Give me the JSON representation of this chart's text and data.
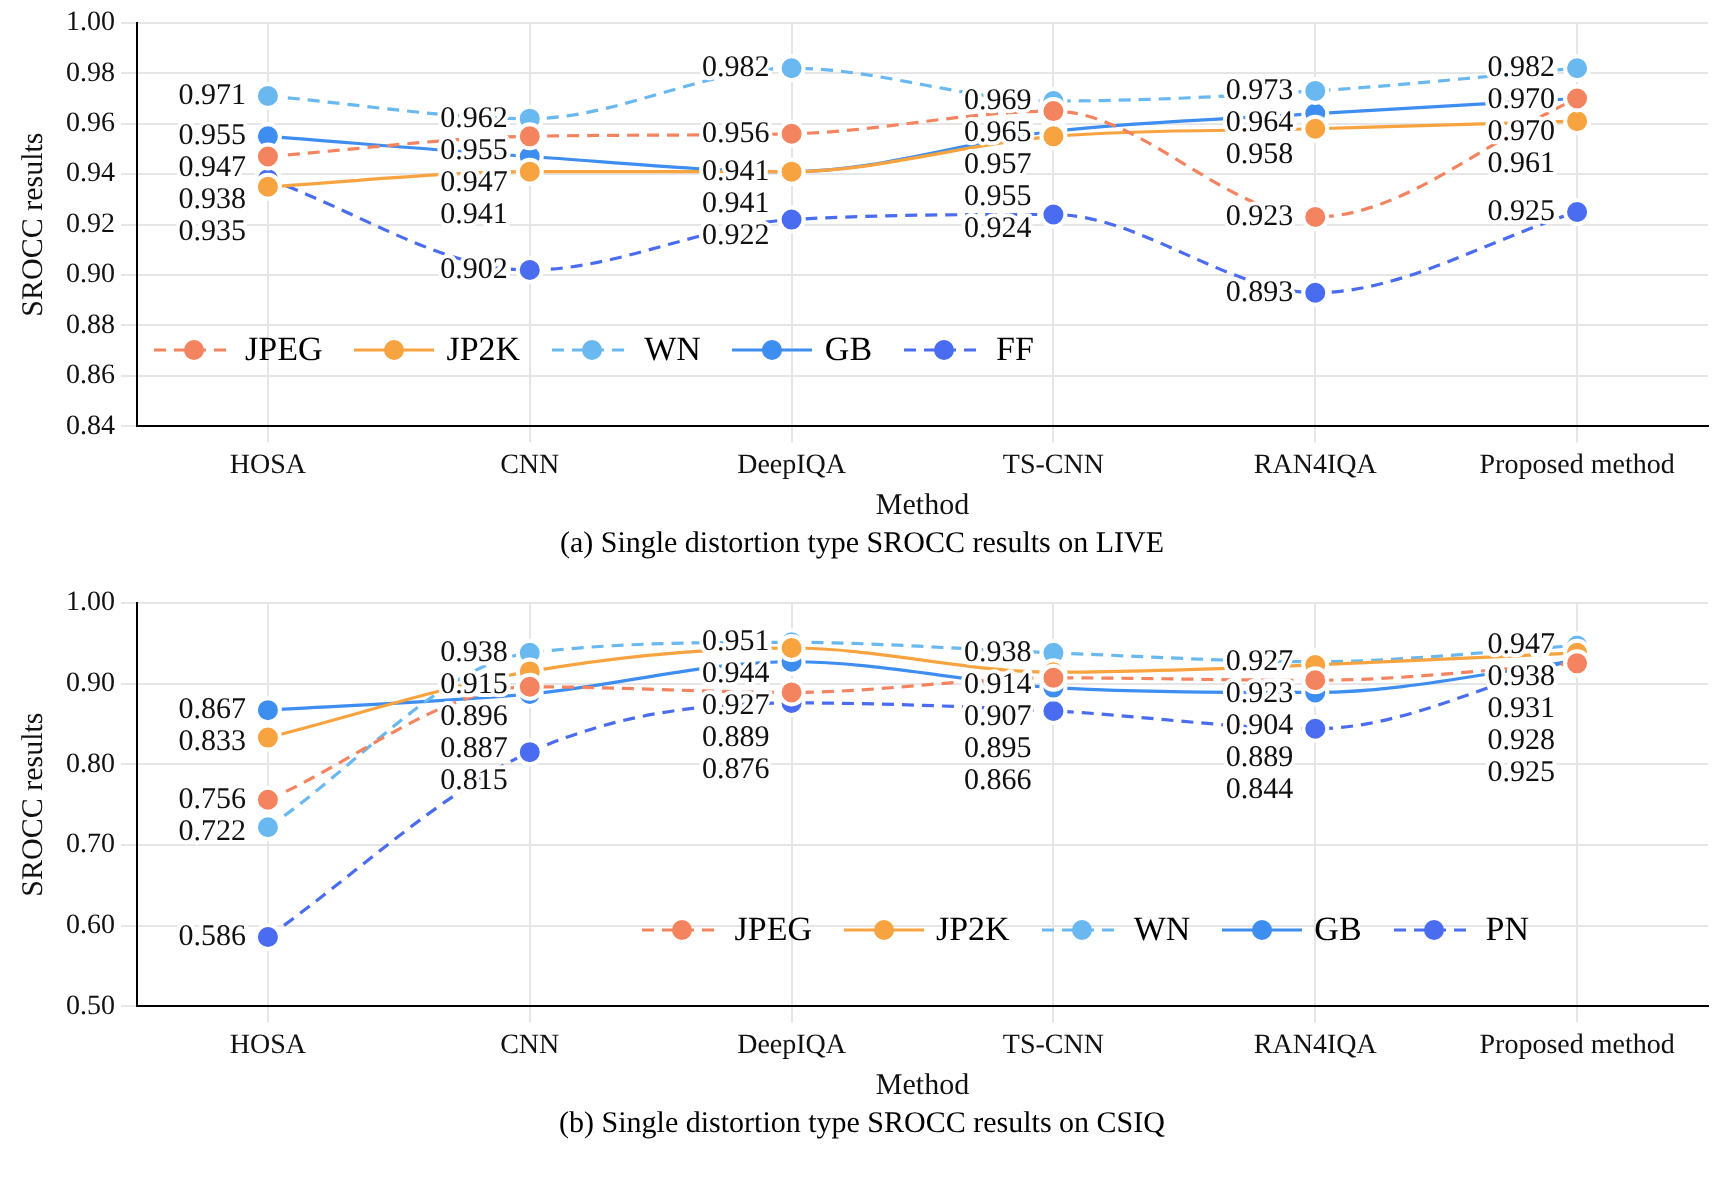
{
  "chart_data": [
    {
      "type": "line",
      "title": "(a) Single distortion type SROCC results on LIVE",
      "xlabel": "Method",
      "ylabel": "SROCC results",
      "categories": [
        "HOSA",
        "CNN",
        "DeepIQA",
        "TS-CNN",
        "RAN4IQA",
        "Proposed method"
      ],
      "series": [
        {
          "name": "JPEG",
          "color": "#f4845f",
          "line_style": "dashed",
          "values": [
            0.947,
            0.955,
            0.956,
            0.965,
            0.923,
            0.97
          ],
          "value_labels": [
            "0.947",
            "0.955",
            "0.956",
            "0.965",
            "0.923",
            "0.970"
          ]
        },
        {
          "name": "JP2K",
          "color": "#f7a440",
          "line_style": "solid",
          "values": [
            0.935,
            0.941,
            0.941,
            0.955,
            0.958,
            0.961
          ],
          "value_labels": [
            "0.935",
            "0.941",
            "0.941",
            "0.955",
            "0.958",
            "0.961"
          ]
        },
        {
          "name": "WN",
          "color": "#6ab8f0",
          "line_style": "dashed",
          "values": [
            0.971,
            0.962,
            0.982,
            0.969,
            0.973,
            0.982
          ],
          "value_labels": [
            "0.971",
            "0.962",
            "0.982",
            "0.969",
            "0.973",
            "0.982"
          ]
        },
        {
          "name": "GB",
          "color": "#3d8ef0",
          "line_style": "solid",
          "values": [
            0.955,
            0.947,
            0.941,
            0.957,
            0.964,
            0.97
          ],
          "value_labels": [
            "0.955",
            "0.947",
            "0.941",
            "0.957",
            "0.964",
            "0.970"
          ]
        },
        {
          "name": "FF",
          "color": "#4a6cf0",
          "line_style": "dashed",
          "values": [
            0.938,
            0.902,
            0.922,
            0.924,
            0.893,
            0.925
          ],
          "value_labels": [
            "0.938",
            "0.902",
            "0.922",
            "0.924",
            "0.893",
            "0.925"
          ]
        }
      ],
      "ylim": [
        0.84,
        1.0
      ],
      "yticks": [
        0.84,
        0.86,
        0.88,
        {
          "value": 0.9,
          "label": "0.90"
        },
        0.92,
        0.94,
        0.96,
        0.98,
        {
          "value": 1.0,
          "label": "1.00"
        }
      ],
      "grid": true,
      "legend": "bottom left",
      "marker": "circle"
    },
    {
      "type": "line",
      "title": "(b) Single distortion type SROCC results on CSIQ",
      "xlabel": "Method",
      "ylabel": "SROCC results",
      "categories": [
        "HOSA",
        "CNN",
        "DeepIQA",
        "TS-CNN",
        "RAN4IQA",
        "Proposed method"
      ],
      "series": [
        {
          "name": "JPEG",
          "color": "#f4845f",
          "line_style": "dashed",
          "values": [
            0.756,
            0.896,
            0.889,
            0.907,
            0.904,
            0.925
          ],
          "value_labels": [
            "0.756",
            "0.896",
            "0.889",
            "0.907",
            "0.904",
            "0.925"
          ]
        },
        {
          "name": "JP2K",
          "color": "#f7a440",
          "line_style": "solid",
          "values": [
            0.833,
            0.915,
            0.944,
            0.914,
            0.923,
            0.938
          ],
          "value_labels": [
            "0.833",
            "0.915",
            "0.944",
            "0.914",
            "0.923",
            "0.938"
          ]
        },
        {
          "name": "WN",
          "color": "#6ab8f0",
          "line_style": "dashed",
          "values": [
            0.722,
            0.938,
            0.951,
            0.938,
            0.927,
            0.947
          ],
          "value_labels": [
            "0.722",
            "0.938",
            "0.951",
            "0.938",
            "0.927",
            "0.947"
          ]
        },
        {
          "name": "GB",
          "color": "#3d8ef0",
          "line_style": "solid",
          "values": [
            0.867,
            0.887,
            0.927,
            0.895,
            0.889,
            0.928
          ],
          "value_labels": [
            "0.867",
            "0.887",
            "0.927",
            "0.895",
            "0.889",
            "0.928"
          ]
        },
        {
          "name": "PN",
          "color": "#4a6cf0",
          "line_style": "dashed",
          "values": [
            0.586,
            0.815,
            0.876,
            0.866,
            0.844,
            0.931
          ],
          "value_labels": [
            "0.586",
            "0.815",
            "0.876",
            "0.866",
            "0.844",
            "0.931"
          ]
        }
      ],
      "ylim": [
        0.5,
        1.0
      ],
      "yticks": [
        {
          "value": 0.5,
          "label": "0.50"
        },
        {
          "value": 0.6,
          "label": "0.60"
        },
        {
          "value": 0.7,
          "label": "0.70"
        },
        {
          "value": 0.8,
          "label": "0.80"
        },
        {
          "value": 0.9,
          "label": "0.90"
        },
        {
          "value": 1.0,
          "label": "1.00"
        }
      ],
      "grid": true,
      "legend": "bottom",
      "marker": "circle"
    }
  ]
}
